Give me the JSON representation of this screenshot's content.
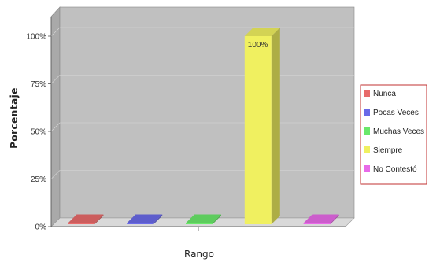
{
  "chart_data": {
    "type": "bar",
    "title": "",
    "xlabel": "Rango",
    "ylabel": "Porcentaje",
    "ylim": [
      0,
      100
    ],
    "yticks": [
      0,
      25,
      50,
      75,
      100
    ],
    "ytick_labels": [
      "0%",
      "25%",
      "50%",
      "75%",
      "100%"
    ],
    "categories": [
      "Nunca",
      "Pocas Veces",
      "Muchas Veces",
      "Siempre",
      "No Contestó"
    ],
    "values": [
      0,
      0,
      0,
      100,
      0
    ],
    "data_labels": [
      "",
      "",
      "",
      "100%",
      ""
    ],
    "colors": [
      "#e86a6a",
      "#6a6ae8",
      "#6ae86a",
      "#f0f060",
      "#e86ae8"
    ],
    "legend": {
      "placement": "right",
      "entries": [
        "Nunca",
        "Pocas Veces",
        "Muchas Veces",
        "Siempre",
        "No Contestó"
      ]
    },
    "style": {
      "three_d": true,
      "grid": true,
      "plot_background": "#c0c0c0"
    }
  }
}
